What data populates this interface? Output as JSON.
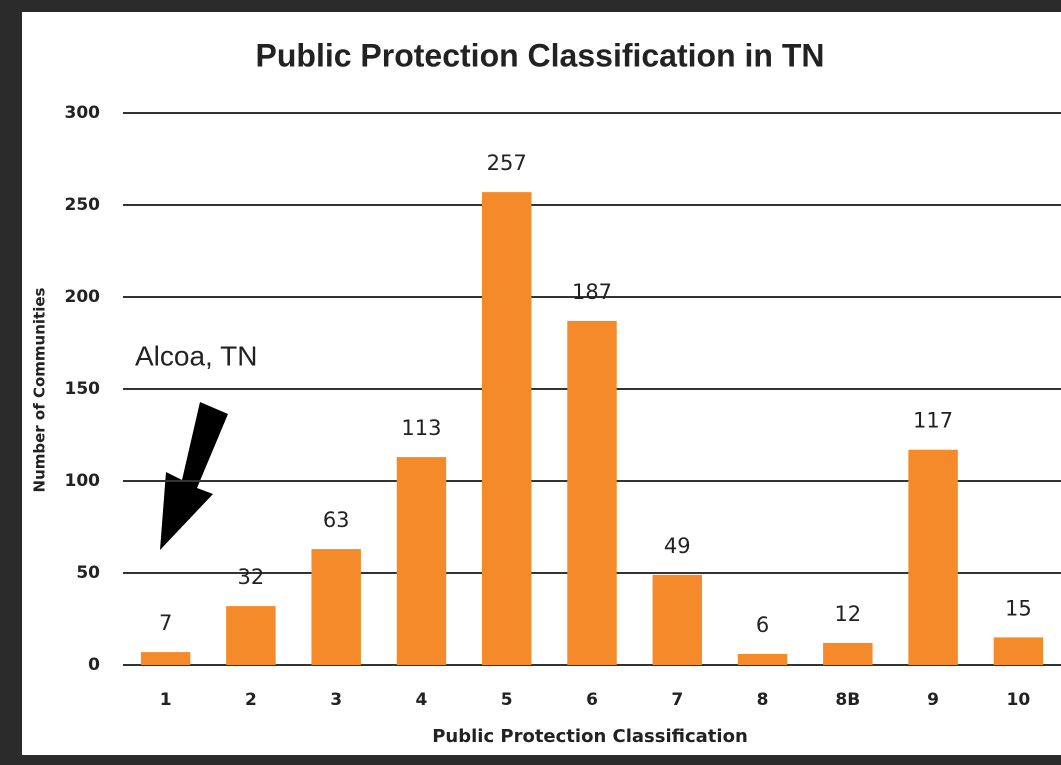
{
  "chart_data": {
    "type": "bar",
    "title": "Public Protection Classification in TN",
    "x_label": "Public Protection Classification",
    "y_label": "Number of Communities",
    "annotation": "Alcoa, TN",
    "categories": [
      "1",
      "2",
      "3",
      "4",
      "5",
      "6",
      "7",
      "8",
      "8B",
      "9",
      "10"
    ],
    "values": [
      7,
      32,
      63,
      113,
      257,
      187,
      49,
      6,
      12,
      117,
      15
    ],
    "color": "#f58a2a",
    "ylim": [
      0,
      300
    ],
    "yticks": [
      0,
      50,
      100,
      150,
      200,
      250,
      300
    ],
    "grid": true
  }
}
